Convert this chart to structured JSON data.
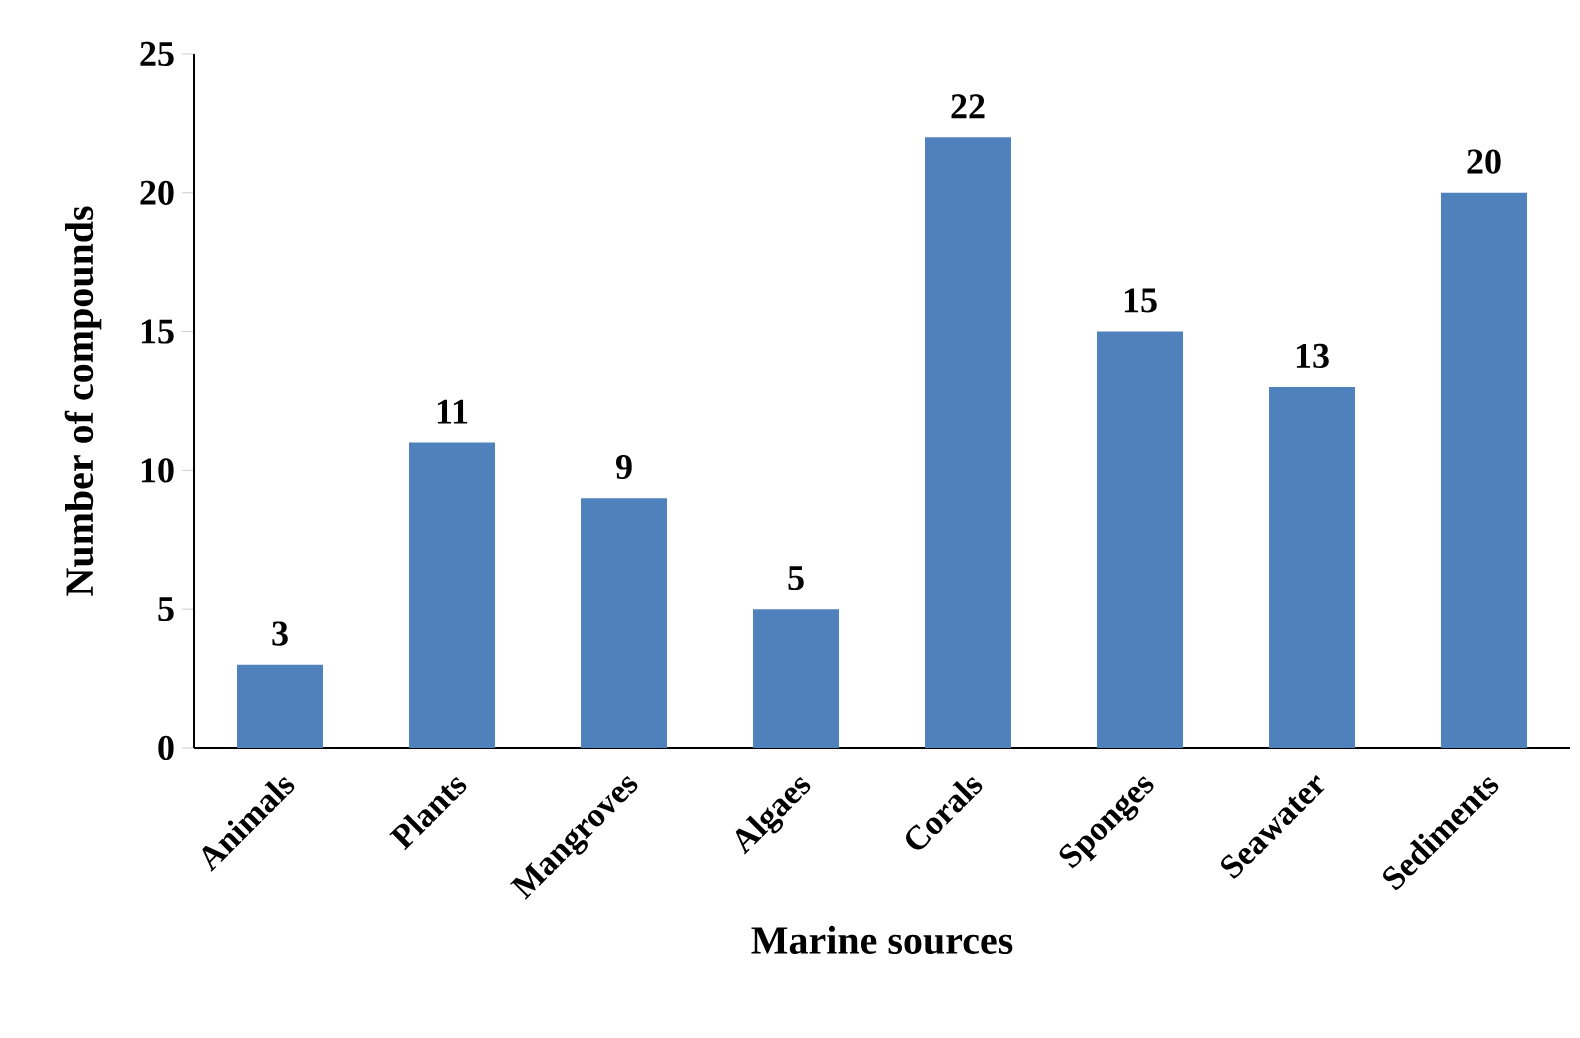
{
  "chart_data": {
    "type": "bar",
    "xlabel": "Marine sources",
    "ylabel": "Number of compounds",
    "categories": [
      "Animals",
      "Plants",
      "Mangroves",
      "Algaes",
      "Corals",
      "Sponges",
      "Seawater",
      "Sediments"
    ],
    "values": [
      3,
      11,
      9,
      5,
      22,
      15,
      13,
      20
    ],
    "color": "#4f81bd",
    "ylim": [
      0,
      25
    ],
    "yticks": [
      0,
      5,
      10,
      15,
      20,
      25
    ],
    "data_labels": true
  }
}
